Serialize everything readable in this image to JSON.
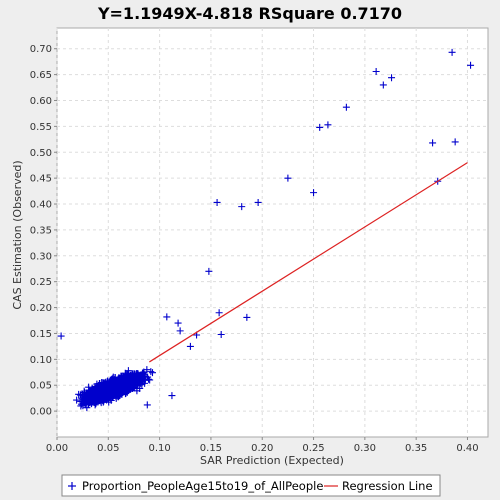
{
  "chart_data": {
    "type": "scatter",
    "title": "Y=1.1949X-4.818    RSquare 0.7170",
    "xlabel": "SAR Prediction (Expected)",
    "ylabel": "CAS Estimation (Observed)",
    "xlim": [
      0.0,
      0.42
    ],
    "ylim": [
      -0.05,
      0.74
    ],
    "xticks": [
      "0.00",
      "0.05",
      "0.10",
      "0.15",
      "0.20",
      "0.25",
      "0.30",
      "0.35",
      "0.40"
    ],
    "yticks": [
      "0.00",
      "0.05",
      "0.10",
      "0.15",
      "0.20",
      "0.25",
      "0.30",
      "0.35",
      "0.40",
      "0.45",
      "0.50",
      "0.55",
      "0.60",
      "0.65",
      "0.70"
    ],
    "grid": true,
    "legend_position": "bottom",
    "colors": {
      "points": "#0000cc",
      "regression": "#dd2222"
    },
    "series": [
      {
        "name": "Proportion_PeopleAge15to19_of_AllPeople",
        "kind": "points",
        "points": [
          [
            0.004,
            0.145
          ],
          [
            0.088,
            0.012
          ],
          [
            0.112,
            0.03
          ],
          [
            0.107,
            0.182
          ],
          [
            0.118,
            0.17
          ],
          [
            0.12,
            0.155
          ],
          [
            0.13,
            0.125
          ],
          [
            0.136,
            0.147
          ],
          [
            0.148,
            0.27
          ],
          [
            0.158,
            0.19
          ],
          [
            0.16,
            0.148
          ],
          [
            0.185,
            0.181
          ],
          [
            0.156,
            0.403
          ],
          [
            0.18,
            0.395
          ],
          [
            0.196,
            0.403
          ],
          [
            0.225,
            0.45
          ],
          [
            0.25,
            0.422
          ],
          [
            0.256,
            0.548
          ],
          [
            0.264,
            0.553
          ],
          [
            0.282,
            0.587
          ],
          [
            0.311,
            0.656
          ],
          [
            0.318,
            0.63
          ],
          [
            0.326,
            0.644
          ],
          [
            0.366,
            0.518
          ],
          [
            0.371,
            0.444
          ],
          [
            0.385,
            0.693
          ],
          [
            0.388,
            0.52
          ],
          [
            0.403,
            0.668
          ]
        ],
        "cluster": {
          "note": "dense band of points",
          "x_range": [
            0.0,
            0.13
          ],
          "y_range": [
            0.0,
            0.14
          ],
          "count": 1400
        }
      },
      {
        "name": "Regression Line",
        "kind": "line",
        "points": [
          [
            0.09,
            0.095
          ],
          [
            0.4,
            0.48
          ]
        ]
      }
    ]
  }
}
